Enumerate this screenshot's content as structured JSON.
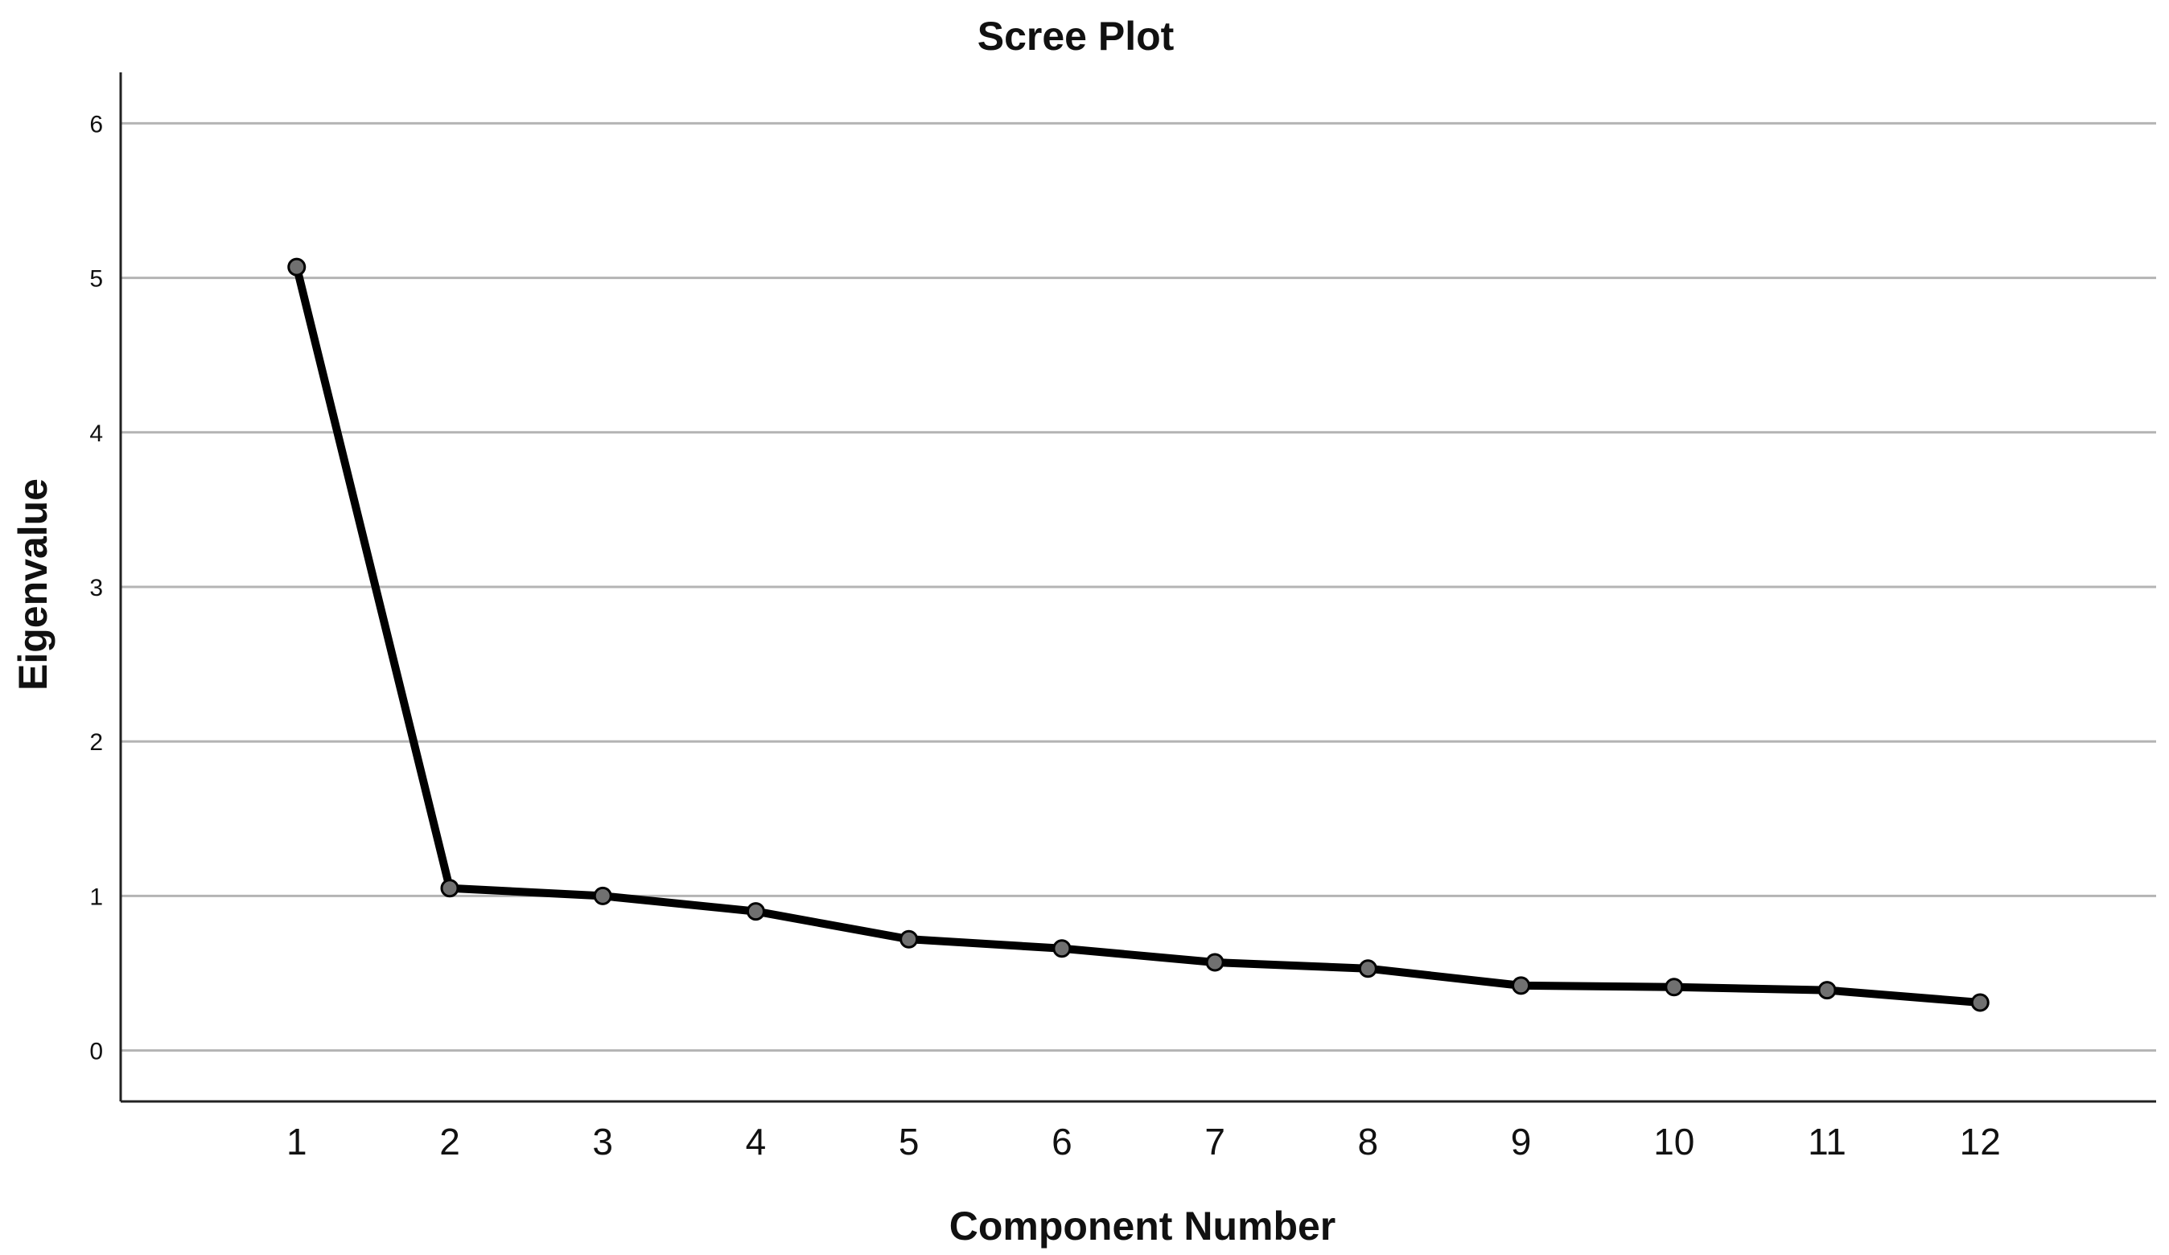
{
  "chart_data": {
    "type": "line",
    "title": "Scree Plot",
    "xlabel": "Component Number",
    "ylabel": "Eigenvalue",
    "x": [
      1,
      2,
      3,
      4,
      5,
      6,
      7,
      8,
      9,
      10,
      11,
      12
    ],
    "xticks": [
      "1",
      "2",
      "3",
      "4",
      "5",
      "6",
      "7",
      "8",
      "9",
      "10",
      "11",
      "12"
    ],
    "yticks": [
      "0",
      "1",
      "2",
      "3",
      "4",
      "5",
      "6"
    ],
    "ylim": [
      -0.33,
      6.33
    ],
    "xlim": [
      -0.15,
      13.15
    ],
    "grid": true,
    "series": [
      {
        "values": [
          5.07,
          1.05,
          1.0,
          0.9,
          0.72,
          0.66,
          0.57,
          0.53,
          0.42,
          0.41,
          0.39,
          0.31
        ]
      }
    ],
    "colors": {
      "line": "#000000",
      "marker_fill": "#707070",
      "grid": "#b4b4b4"
    }
  }
}
